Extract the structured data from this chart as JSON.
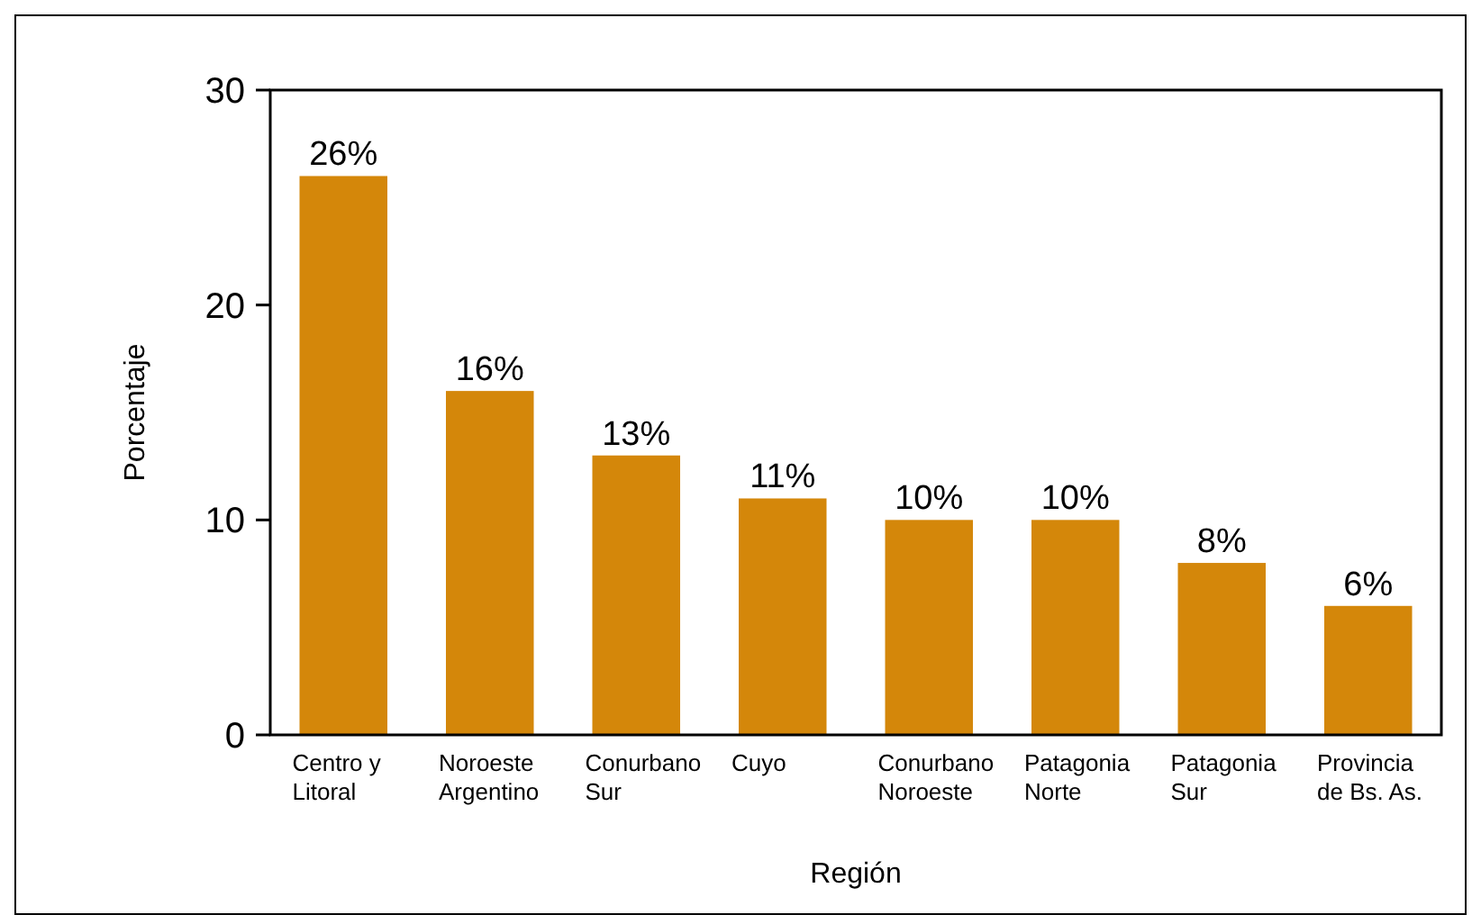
{
  "chart_data": {
    "type": "bar",
    "xlabel": "Región",
    "ylabel": "Porcentaje",
    "categories": [
      "Centro y\nLitoral",
      "Noroeste\nArgentino",
      "Conurbano\nSur",
      "Cuyo",
      "Conurbano\nNoroeste",
      "Patagonia\nNorte",
      "Patagonia\nSur",
      "Provincia\nde Bs. As."
    ],
    "values": [
      26,
      16,
      13,
      11,
      10,
      10,
      8,
      6
    ],
    "value_labels": [
      "26%",
      "16%",
      "13%",
      "11%",
      "10%",
      "10%",
      "8%",
      "6%"
    ],
    "color": "#d4870a",
    "ylim": [
      0,
      30
    ],
    "yticks": [
      0,
      10,
      20,
      30
    ],
    "grid": false
  }
}
